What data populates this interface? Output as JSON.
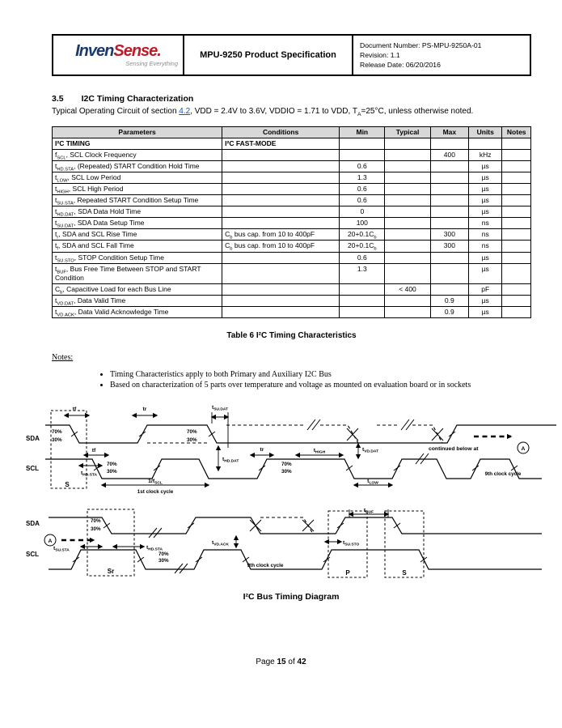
{
  "header": {
    "logo": {
      "part1": "Inven",
      "part2": "Sense.",
      "tagline": "Sensing Everything"
    },
    "title": "MPU-9250 Product Specification",
    "doc_number": "Document Number: PS-MPU-9250A-01",
    "revision": "Revision: 1.1",
    "release": "Release Date: 06/20/2016"
  },
  "section": {
    "number": "3.5",
    "title": "I2C Timing Characterization",
    "intro_before": "Typical Operating Circuit of section ",
    "intro_link": "4.2",
    "intro_after": ", VDD = 2.4V to 3.6V, VDDIO = 1.71 to VDD, T~A~=25°C, unless otherwise noted."
  },
  "table": {
    "headers": [
      "Parameters",
      "Conditions",
      "Min",
      "Typical",
      "Max",
      "Units",
      "Notes"
    ],
    "rows": [
      {
        "param": "I²C TIMING",
        "cond": "I²C FAST-MODE",
        "min": "",
        "typ": "",
        "max": "",
        "units": "",
        "notes": "",
        "bold": true
      },
      {
        "param": "f~SCL~, SCL Clock Frequency",
        "cond": "",
        "min": "",
        "typ": "",
        "max": "400",
        "units": "kHz",
        "notes": ""
      },
      {
        "param": "t~HD.STA~, (Repeated) START Condition Hold Time",
        "cond": "",
        "min": "0.6",
        "typ": "",
        "max": "",
        "units": "µs",
        "notes": ""
      },
      {
        "param": "t~LOW~, SCL Low Period",
        "cond": "",
        "min": "1.3",
        "typ": "",
        "max": "",
        "units": "µs",
        "notes": ""
      },
      {
        "param": "t~HIGH~, SCL High Period",
        "cond": "",
        "min": "0.6",
        "typ": "",
        "max": "",
        "units": "µs",
        "notes": ""
      },
      {
        "param": "t~SU.STA~, Repeated START Condition Setup Time",
        "cond": "",
        "min": "0.6",
        "typ": "",
        "max": "",
        "units": "µs",
        "notes": ""
      },
      {
        "param": "t~HD.DAT~, SDA Data Hold Time",
        "cond": "",
        "min": "0",
        "typ": "",
        "max": "",
        "units": "µs",
        "notes": ""
      },
      {
        "param": "t~SU.DAT~, SDA Data Setup Time",
        "cond": "",
        "min": "100",
        "typ": "",
        "max": "",
        "units": "ns",
        "notes": ""
      },
      {
        "param": "t~r~, SDA and SCL Rise Time",
        "cond": "C~b~ bus cap. from 10 to 400pF",
        "min": "20+0.1C~b~",
        "typ": "",
        "max": "300",
        "units": "ns",
        "notes": ""
      },
      {
        "param": "t~f~, SDA and SCL Fall Time",
        "cond": "C~b~ bus cap. from 10 to 400pF",
        "min": "20+0.1C~b~",
        "typ": "",
        "max": "300",
        "units": "ns",
        "notes": ""
      },
      {
        "param": "t~SU.STO~, STOP Condition Setup Time",
        "cond": "",
        "min": "0.6",
        "typ": "",
        "max": "",
        "units": "µs",
        "notes": ""
      },
      {
        "param": "t~BUF~, Bus Free Time Between STOP and START Condition",
        "cond": "",
        "min": "1.3",
        "typ": "",
        "max": "",
        "units": "µs",
        "notes": ""
      },
      {
        "param": "C~b~, Capacitive Load for each Bus Line",
        "cond": "",
        "min": "",
        "typ": "< 400",
        "max": "",
        "units": "pF",
        "notes": ""
      },
      {
        "param": "t~VD.DAT~, Data Valid Time",
        "cond": "",
        "min": "",
        "typ": "",
        "max": "0.9",
        "units": "µs",
        "notes": ""
      },
      {
        "param": "t~VD.ACK~, Data Valid Acknowledge Time",
        "cond": "",
        "min": "",
        "typ": "",
        "max": "0.9",
        "units": "µs",
        "notes": ""
      }
    ],
    "caption": "Table 6 I²C Timing Characteristics"
  },
  "notes": {
    "label": "Notes:",
    "items": [
      "Timing Characteristics apply to both Primary and Auxiliary I2C Bus",
      "Based on characterization of 5 parts over temperature and voltage as mounted on evaluation board or in sockets"
    ]
  },
  "diagram1": {
    "sda_label": "SDA",
    "scl_label": "SCL",
    "s_label": "S",
    "tf": "tf",
    "tr": "tr",
    "pct70": "70%",
    "pct30": "30%",
    "tsu_dat": "t~SU.DAT~",
    "thd_sta": "t~HD.STA~",
    "inv_fscl": "1/f~SCL~",
    "first_clock": "1st clock cycle",
    "thd_dat": "t~HD.DAT~",
    "tlow": "t~LOW~",
    "thigh": "t~HIGH~",
    "tvd_dat": "t~VD.DAT~",
    "continued": "continued below at",
    "a_label": "A",
    "ninth_clock": "9th clock cycle"
  },
  "diagram2": {
    "sda_label": "SDA",
    "scl_label": "SCL",
    "a_label": "A",
    "tsu_sta": "t~SU.STA~",
    "sr_label": "Sr",
    "thd_sta": "t~HD.STA~",
    "pct70": "70%",
    "pct30": "30%",
    "tvd_ack": "t~VD.ACK~",
    "ninth_clock": "9th clock cycle",
    "tsu_sto": "t~SU.STO~",
    "tbuf": "t~BUF~",
    "p_label": "P",
    "s_label": "S",
    "caption": "I²C Bus Timing Diagram"
  },
  "footer": {
    "prefix": "Page",
    "page": "15",
    "of": "of",
    "total": "42"
  }
}
